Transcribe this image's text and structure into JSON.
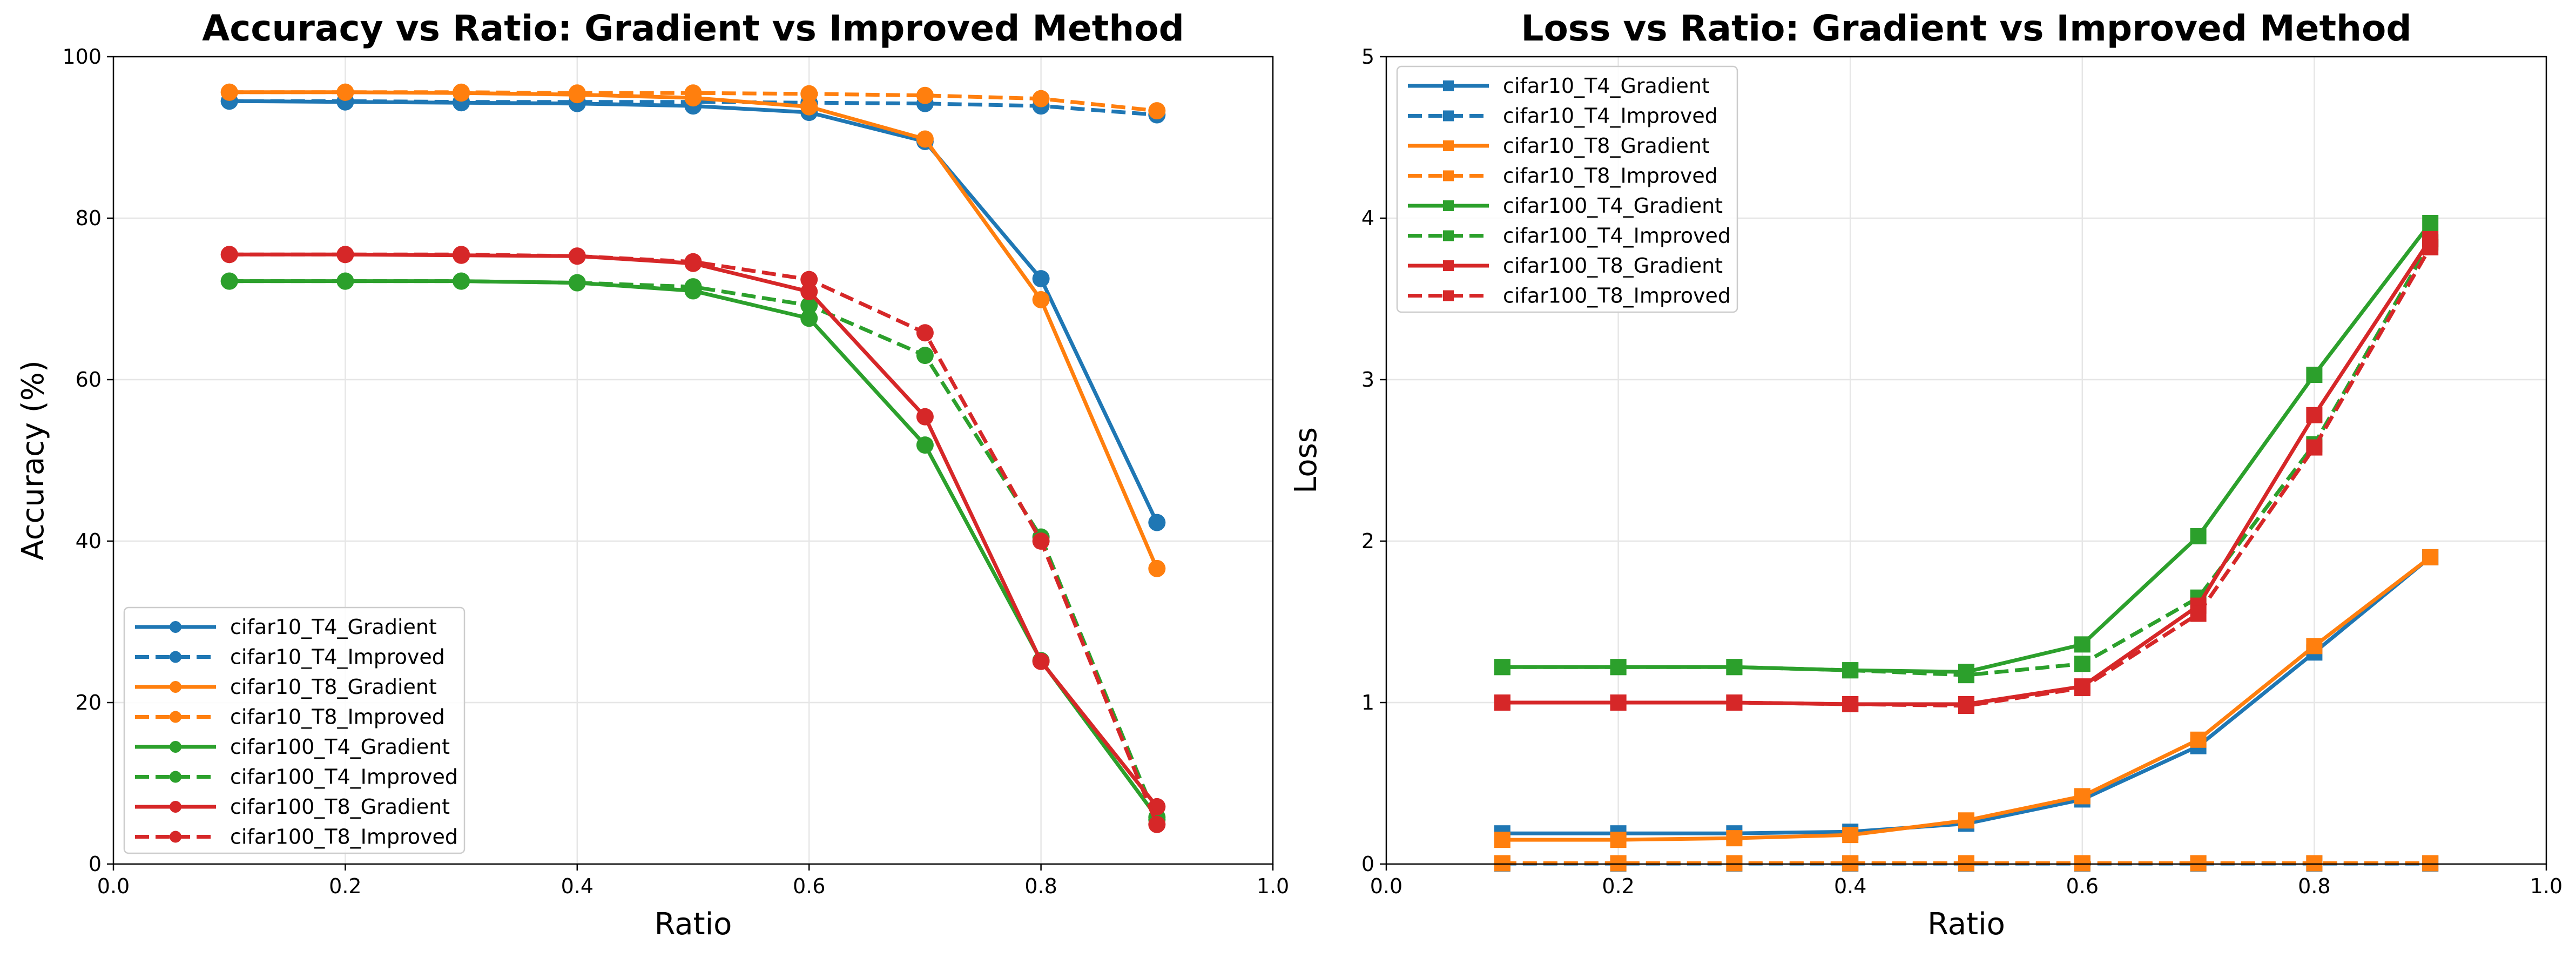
{
  "chart_data": [
    {
      "type": "line",
      "title": "Accuracy vs Ratio: Gradient vs Improved Method",
      "xlabel": "Ratio",
      "ylabel": "Accuracy (%)",
      "xlim": [
        0.0,
        1.0
      ],
      "ylim": [
        0,
        100
      ],
      "xticks": [
        "0.0",
        "0.2",
        "0.4",
        "0.6",
        "0.8",
        "1.0"
      ],
      "yticks": [
        "0",
        "20",
        "40",
        "60",
        "80",
        "100"
      ],
      "grid": true,
      "legend_position": "lower-left",
      "marker": "circle",
      "x": [
        0.1,
        0.2,
        0.3,
        0.4,
        0.5,
        0.6,
        0.7,
        0.8,
        0.9
      ],
      "series": [
        {
          "name": "cifar10_T4_Gradient",
          "color": "#1f77b4",
          "style": "solid",
          "values": [
            94.5,
            94.4,
            94.3,
            94.2,
            93.9,
            93.1,
            89.5,
            72.5,
            42.3
          ]
        },
        {
          "name": "cifar10_T4_Improved",
          "color": "#1f77b4",
          "style": "dashed",
          "values": [
            94.5,
            94.5,
            94.4,
            94.4,
            94.4,
            94.3,
            94.2,
            93.9,
            92.8
          ]
        },
        {
          "name": "cifar10_T8_Gradient",
          "color": "#ff7f0e",
          "style": "solid",
          "values": [
            95.6,
            95.6,
            95.5,
            95.3,
            94.9,
            93.8,
            89.8,
            69.9,
            36.6
          ]
        },
        {
          "name": "cifar10_T8_Improved",
          "color": "#ff7f0e",
          "style": "dashed",
          "values": [
            95.6,
            95.6,
            95.6,
            95.5,
            95.5,
            95.4,
            95.2,
            94.8,
            93.3
          ]
        },
        {
          "name": "cifar100_T4_Gradient",
          "color": "#2ca02c",
          "style": "solid",
          "values": [
            72.2,
            72.2,
            72.2,
            72.0,
            71.0,
            67.6,
            51.9,
            25.2,
            5.8
          ]
        },
        {
          "name": "cifar100_T4_Improved",
          "color": "#2ca02c",
          "style": "dashed",
          "values": [
            72.2,
            72.2,
            72.2,
            72.0,
            71.5,
            69.2,
            63.0,
            40.5,
            5.5
          ]
        },
        {
          "name": "cifar100_T8_Gradient",
          "color": "#d62728",
          "style": "solid",
          "values": [
            75.5,
            75.5,
            75.4,
            75.3,
            74.4,
            70.9,
            55.4,
            25.1,
            7.1
          ]
        },
        {
          "name": "cifar100_T8_Improved",
          "color": "#d62728",
          "style": "dashed",
          "values": [
            75.5,
            75.5,
            75.5,
            75.3,
            74.6,
            72.4,
            65.8,
            40.0,
            4.9
          ]
        }
      ]
    },
    {
      "type": "line",
      "title": "Loss vs Ratio: Gradient vs Improved Method",
      "xlabel": "Ratio",
      "ylabel": "Loss",
      "xlim": [
        0.0,
        1.0
      ],
      "ylim": [
        0,
        5
      ],
      "xticks": [
        "0.0",
        "0.2",
        "0.4",
        "0.6",
        "0.8",
        "1.0"
      ],
      "yticks": [
        "0",
        "1",
        "2",
        "3",
        "4",
        "5"
      ],
      "grid": true,
      "legend_position": "upper-left",
      "marker": "square",
      "x": [
        0.1,
        0.2,
        0.3,
        0.4,
        0.5,
        0.6,
        0.7,
        0.8,
        0.9
      ],
      "series": [
        {
          "name": "cifar10_T4_Gradient",
          "color": "#1f77b4",
          "style": "solid",
          "values": [
            0.19,
            0.19,
            0.19,
            0.2,
            0.25,
            0.4,
            0.73,
            1.31,
            1.9
          ]
        },
        {
          "name": "cifar10_T4_Improved",
          "color": "#1f77b4",
          "style": "dashed",
          "values": [
            0.003,
            0.003,
            0.003,
            0.003,
            0.003,
            0.003,
            0.003,
            0.003,
            0.003
          ]
        },
        {
          "name": "cifar10_T8_Gradient",
          "color": "#ff7f0e",
          "style": "solid",
          "values": [
            0.15,
            0.15,
            0.16,
            0.18,
            0.27,
            0.42,
            0.77,
            1.35,
            1.9
          ]
        },
        {
          "name": "cifar10_T8_Improved",
          "color": "#ff7f0e",
          "style": "dashed",
          "values": [
            0.005,
            0.005,
            0.005,
            0.005,
            0.005,
            0.005,
            0.005,
            0.005,
            0.005
          ]
        },
        {
          "name": "cifar100_T4_Gradient",
          "color": "#2ca02c",
          "style": "solid",
          "values": [
            1.22,
            1.22,
            1.22,
            1.2,
            1.19,
            1.36,
            2.03,
            3.03,
            3.97
          ]
        },
        {
          "name": "cifar100_T4_Improved",
          "color": "#2ca02c",
          "style": "dashed",
          "values": [
            1.22,
            1.22,
            1.22,
            1.2,
            1.17,
            1.24,
            1.65,
            2.6,
            3.85
          ]
        },
        {
          "name": "cifar100_T8_Gradient",
          "color": "#d62728",
          "style": "solid",
          "values": [
            1.0,
            1.0,
            1.0,
            0.99,
            0.99,
            1.1,
            1.6,
            2.78,
            3.87
          ]
        },
        {
          "name": "cifar100_T8_Improved",
          "color": "#d62728",
          "style": "dashed",
          "values": [
            1.0,
            1.0,
            1.0,
            0.99,
            0.98,
            1.09,
            1.55,
            2.58,
            3.82
          ]
        }
      ]
    }
  ]
}
